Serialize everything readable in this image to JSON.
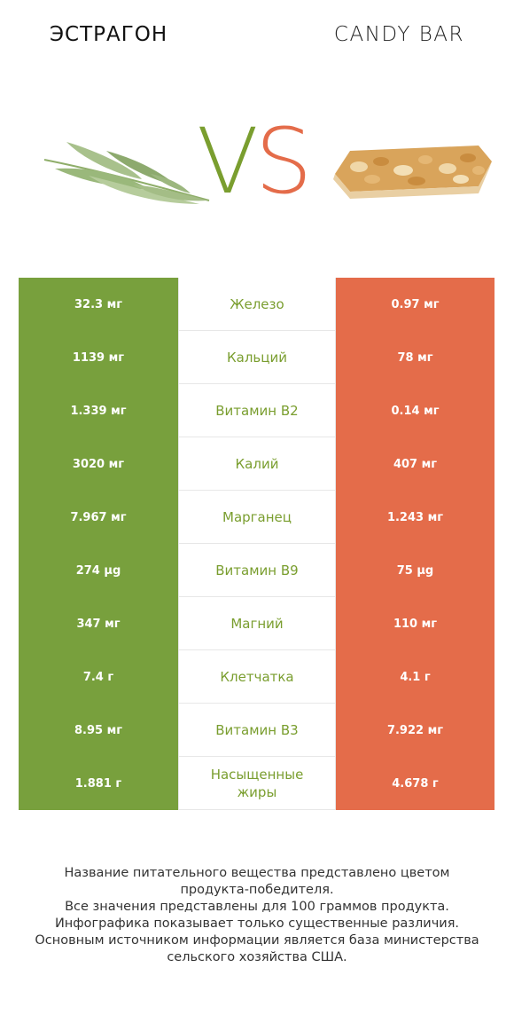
{
  "header": {
    "left_title": "ЭСТРАГОН",
    "right_title": "CANDY BAR",
    "vs_v": "V",
    "vs_s": "S"
  },
  "colors": {
    "left": "#78a03d",
    "right": "#e46c4a"
  },
  "rows": [
    {
      "left": "32.3 мг",
      "name": "Железо",
      "right": "0.97 мг"
    },
    {
      "left": "1139 мг",
      "name": "Кальций",
      "right": "78 мг"
    },
    {
      "left": "1.339 мг",
      "name": "Витамин B2",
      "right": "0.14 мг"
    },
    {
      "left": "3020 мг",
      "name": "Калий",
      "right": "407 мг"
    },
    {
      "left": "7.967 мг",
      "name": "Марганец",
      "right": "1.243 мг"
    },
    {
      "left": "274 µg",
      "name": "Витамин B9",
      "right": "75 µg"
    },
    {
      "left": "347 мг",
      "name": "Магний",
      "right": "110 мг"
    },
    {
      "left": "7.4 г",
      "name": "Клетчатка",
      "right": "4.1 г"
    },
    {
      "left": "8.95 мг",
      "name": "Витамин B3",
      "right": "7.922 мг"
    },
    {
      "left": "1.881 г",
      "name": "Насыщенные жиры",
      "right": "4.678 г"
    }
  ],
  "footer": {
    "line1": "Название питательного вещества представлено цветом",
    "line2": "продукта-победителя.",
    "line3": "Все значения представлены для 100 граммов продукта.",
    "line4": "Инфографика показывает только существенные различия.",
    "line5": "Основным источником информации является база министерства",
    "line6": "сельского хозяйства США."
  }
}
